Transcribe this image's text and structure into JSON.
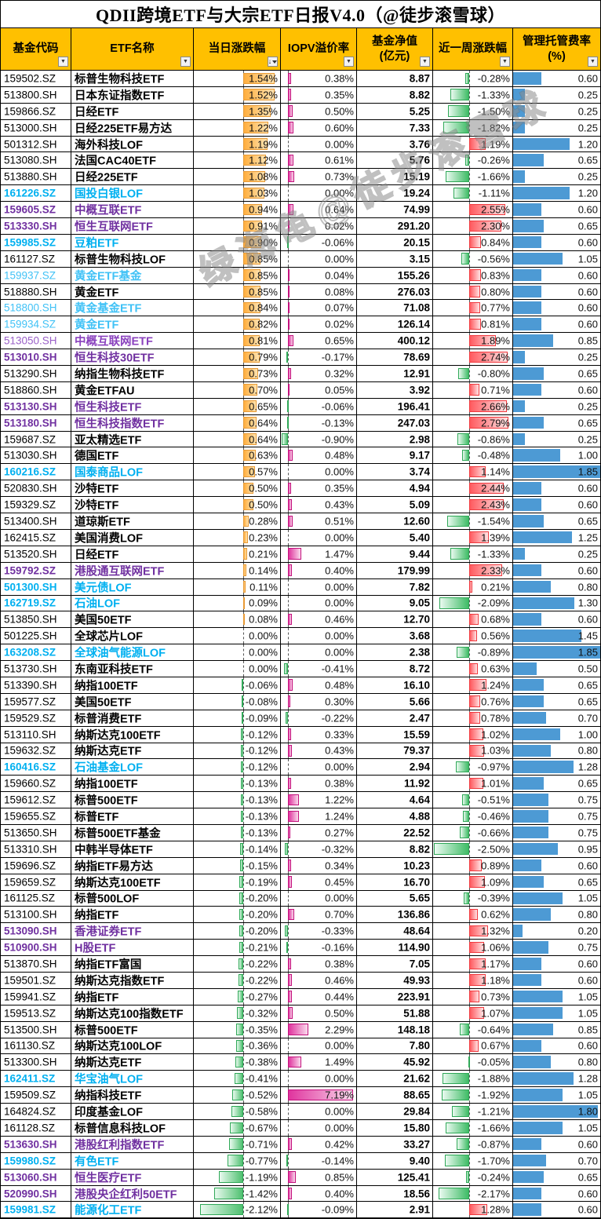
{
  "title": "QDII跨境ETF与大宗ETF日报V4.0（@徒步滚雪球）",
  "watermark": "绿海龟@徒步滚雪球",
  "colors": {
    "header_bg": "#FFC000",
    "daily_bar_pos": "#FFAE3E",
    "iopv_bar_pos": "#E0349E",
    "week_bar_pos": "#FF5A5F",
    "bar_neg": "#4FC070",
    "fee_bar": "#4D9AD4",
    "code_cyan": "#00B0F0",
    "code_lightcyan": "#41C2F6",
    "code_purple": "#7030A0"
  },
  "columns": [
    {
      "label": "基金代码"
    },
    {
      "label": "ETF名称"
    },
    {
      "label": "当日涨跌幅",
      "sorted": true
    },
    {
      "label": "IOPV溢价率"
    },
    {
      "label": "基金净值",
      "label2": "(亿元)"
    },
    {
      "label": "近一周涨跌幅"
    },
    {
      "label": "管理托管费率",
      "label2": "(%)"
    }
  ],
  "rows": [
    {
      "code": "159502.SZ",
      "name": "标普生物科技ETF",
      "style": "black",
      "chg": 1.54,
      "iopv": 0.38,
      "nav": 8.87,
      "week": -0.28,
      "fee": 0.6
    },
    {
      "code": "513800.SH",
      "name": "日本东证指数ETF",
      "style": "black",
      "chg": 1.52,
      "iopv": 0.35,
      "nav": 8.82,
      "week": -1.33,
      "fee": 0.25
    },
    {
      "code": "159866.SZ",
      "name": "日经ETF",
      "style": "black",
      "chg": 1.35,
      "iopv": 0.5,
      "nav": 5.25,
      "week": -1.5,
      "fee": 0.25
    },
    {
      "code": "513000.SH",
      "name": "日经225ETF易方达",
      "style": "black",
      "chg": 1.22,
      "iopv": 0.6,
      "nav": 7.33,
      "week": -1.82,
      "fee": 0.25
    },
    {
      "code": "501312.SH",
      "name": "海外科技LOF",
      "style": "black",
      "chg": 1.19,
      "iopv": 0.0,
      "nav": 3.76,
      "week": 1.19,
      "fee": 1.2
    },
    {
      "code": "513080.SH",
      "name": "法国CAC40ETF",
      "style": "black",
      "chg": 1.12,
      "iopv": 0.61,
      "nav": 5.76,
      "week": -0.26,
      "fee": 0.65
    },
    {
      "code": "513880.SH",
      "name": "日经225ETF",
      "style": "black",
      "chg": 1.08,
      "iopv": 0.73,
      "nav": 15.19,
      "week": -1.66,
      "fee": 0.25
    },
    {
      "code": "161226.SZ",
      "name": "国投白银LOF",
      "style": "cyan",
      "chg": 1.03,
      "iopv": 0.0,
      "nav": 19.24,
      "week": -1.11,
      "fee": 1.2
    },
    {
      "code": "159605.SZ",
      "name": "中概互联ETF",
      "style": "purple",
      "chg": 0.94,
      "iopv": 0.64,
      "nav": 74.99,
      "week": 2.55,
      "fee": 0.6
    },
    {
      "code": "513330.SH",
      "name": "恒生互联网ETF",
      "style": "purple",
      "chg": 0.91,
      "iopv": 0.02,
      "nav": 291.2,
      "week": 2.3,
      "fee": 0.65
    },
    {
      "code": "159985.SZ",
      "name": "豆粕ETF",
      "style": "cyan",
      "chg": 0.9,
      "iopv": -0.06,
      "nav": 20.15,
      "week": 0.84,
      "fee": 0.6
    },
    {
      "code": "161127.SZ",
      "name": "标普生物科技LOF",
      "style": "black",
      "chg": 0.85,
      "iopv": 0.0,
      "nav": 3.15,
      "week": -0.56,
      "fee": 1.05
    },
    {
      "code": "159937.SZ",
      "name": "黄金ETF基金",
      "style": "lightcyan",
      "chg": 0.85,
      "iopv": 0.04,
      "nav": 155.26,
      "week": 0.83,
      "fee": 0.6
    },
    {
      "code": "518880.SH",
      "name": "黄金ETF",
      "style": "black",
      "chg": 0.85,
      "iopv": 0.08,
      "nav": 276.03,
      "week": 0.8,
      "fee": 0.6
    },
    {
      "code": "518800.SH",
      "name": "黄金基金ETF",
      "style": "lightcyan",
      "chg": 0.84,
      "iopv": 0.07,
      "nav": 71.08,
      "week": 0.77,
      "fee": 0.6
    },
    {
      "code": "159934.SZ",
      "name": "黄金ETF",
      "style": "lightcyan",
      "chg": 0.82,
      "iopv": 0.02,
      "nav": 126.14,
      "week": 0.81,
      "fee": 0.6
    },
    {
      "code": "513050.SH",
      "name": "中概互联网ETF",
      "style": "lightpurple",
      "chg": 0.81,
      "iopv": 0.65,
      "nav": 400.12,
      "week": 1.89,
      "fee": 0.85
    },
    {
      "code": "513010.SH",
      "name": "恒生科技30ETF",
      "style": "purple",
      "chg": 0.79,
      "iopv": -0.17,
      "nav": 78.69,
      "week": 2.74,
      "fee": 0.25
    },
    {
      "code": "513290.SH",
      "name": "纳指生物科技ETF",
      "style": "black",
      "chg": 0.73,
      "iopv": 0.32,
      "nav": 12.91,
      "week": -0.8,
      "fee": 0.65
    },
    {
      "code": "518860.SH",
      "name": "黄金ETFAU",
      "style": "black",
      "chg": 0.7,
      "iopv": 0.05,
      "nav": 3.92,
      "week": 0.71,
      "fee": 0.6
    },
    {
      "code": "513130.SH",
      "name": "恒生科技ETF",
      "style": "purple",
      "chg": 0.65,
      "iopv": -0.06,
      "nav": 196.41,
      "week": 2.66,
      "fee": 0.25
    },
    {
      "code": "513180.SH",
      "name": "恒生科技指数ETF",
      "style": "purple",
      "chg": 0.64,
      "iopv": -0.13,
      "nav": 247.03,
      "week": 2.79,
      "fee": 0.65
    },
    {
      "code": "159687.SZ",
      "name": "亚太精选ETF",
      "style": "black",
      "chg": 0.64,
      "iopv": -0.9,
      "nav": 2.98,
      "week": -0.86,
      "fee": 0.25
    },
    {
      "code": "513030.SH",
      "name": "德国ETF",
      "style": "black",
      "chg": 0.63,
      "iopv": 0.48,
      "nav": 9.17,
      "week": -0.48,
      "fee": 1.0
    },
    {
      "code": "160216.SZ",
      "name": "国泰商品LOF",
      "style": "cyan",
      "chg": 0.57,
      "iopv": 0.0,
      "nav": 3.74,
      "week": 1.14,
      "fee": 1.85
    },
    {
      "code": "520830.SH",
      "name": "沙特ETF",
      "style": "black",
      "chg": 0.5,
      "iopv": 0.35,
      "nav": 4.94,
      "week": 2.44,
      "fee": 0.6
    },
    {
      "code": "159329.SZ",
      "name": "沙特ETF",
      "style": "black",
      "chg": 0.5,
      "iopv": 0.43,
      "nav": 5.09,
      "week": 2.43,
      "fee": 0.6
    },
    {
      "code": "513400.SH",
      "name": "道琼斯ETF",
      "style": "black",
      "chg": 0.28,
      "iopv": 0.51,
      "nav": 12.6,
      "week": -1.54,
      "fee": 0.65
    },
    {
      "code": "162415.SZ",
      "name": "美国消费LOF",
      "style": "black",
      "chg": 0.23,
      "iopv": 0.0,
      "nav": 5.4,
      "week": 1.39,
      "fee": 1.25
    },
    {
      "code": "513520.SH",
      "name": "日经ETF",
      "style": "black",
      "chg": 0.21,
      "iopv": 1.47,
      "nav": 9.44,
      "week": -1.33,
      "fee": 0.25
    },
    {
      "code": "159792.SZ",
      "name": "港股通互联网ETF",
      "style": "purple",
      "chg": 0.14,
      "iopv": 0.4,
      "nav": 179.99,
      "week": 2.33,
      "fee": 0.6
    },
    {
      "code": "501300.SH",
      "name": "美元债LOF",
      "style": "cyan",
      "chg": 0.11,
      "iopv": 0.0,
      "nav": 7.82,
      "week": 0.21,
      "fee": 0.8
    },
    {
      "code": "162719.SZ",
      "name": "石油LOF",
      "style": "cyan",
      "chg": 0.09,
      "iopv": 0.0,
      "nav": 9.05,
      "week": -2.09,
      "fee": 1.3
    },
    {
      "code": "513850.SH",
      "name": "美国50ETF",
      "style": "black",
      "chg": 0.08,
      "iopv": 0.46,
      "nav": 12.7,
      "week": 0.68,
      "fee": 0.6
    },
    {
      "code": "501225.SH",
      "name": "全球芯片LOF",
      "style": "black",
      "chg": 0.0,
      "iopv": 0.0,
      "nav": 3.68,
      "week": 0.56,
      "fee": 1.45
    },
    {
      "code": "163208.SZ",
      "name": "全球油气能源LOF",
      "style": "cyan",
      "chg": 0.0,
      "iopv": 0.0,
      "nav": 2.38,
      "week": -0.89,
      "fee": 1.85
    },
    {
      "code": "513730.SH",
      "name": "东南亚科技ETF",
      "style": "black",
      "chg": 0.0,
      "iopv": -0.41,
      "nav": 8.72,
      "week": 0.63,
      "fee": 0.5
    },
    {
      "code": "513390.SH",
      "name": "纳指100ETF",
      "style": "black",
      "chg": -0.06,
      "iopv": 0.48,
      "nav": 16.1,
      "week": 1.24,
      "fee": 0.65
    },
    {
      "code": "159577.SZ",
      "name": "美国50ETF",
      "style": "black",
      "chg": -0.08,
      "iopv": 0.3,
      "nav": 5.66,
      "week": 0.76,
      "fee": 0.65
    },
    {
      "code": "159529.SZ",
      "name": "标普消费ETF",
      "style": "black",
      "chg": -0.09,
      "iopv": -0.22,
      "nav": 2.47,
      "week": 0.78,
      "fee": 0.7
    },
    {
      "code": "513110.SH",
      "name": "纳斯达克100ETF",
      "style": "black",
      "chg": -0.12,
      "iopv": 0.33,
      "nav": 15.59,
      "week": 1.02,
      "fee": 1.0
    },
    {
      "code": "159632.SZ",
      "name": "纳斯达克ETF",
      "style": "black",
      "chg": -0.12,
      "iopv": 0.43,
      "nav": 79.37,
      "week": 1.03,
      "fee": 0.8
    },
    {
      "code": "160416.SZ",
      "name": "石油基金LOF",
      "style": "cyan",
      "chg": -0.12,
      "iopv": 0.0,
      "nav": 2.94,
      "week": -0.97,
      "fee": 1.28
    },
    {
      "code": "159660.SZ",
      "name": "纳指100ETF",
      "style": "black",
      "chg": -0.13,
      "iopv": 0.38,
      "nav": 11.92,
      "week": 1.01,
      "fee": 0.65
    },
    {
      "code": "159612.SZ",
      "name": "标普500ETF",
      "style": "black",
      "chg": -0.13,
      "iopv": 1.22,
      "nav": 4.64,
      "week": -0.51,
      "fee": 0.75
    },
    {
      "code": "159655.SZ",
      "name": "标普ETF",
      "style": "black",
      "chg": -0.13,
      "iopv": 1.24,
      "nav": 4.88,
      "week": -0.46,
      "fee": 0.75
    },
    {
      "code": "513650.SH",
      "name": "标普500ETF基金",
      "style": "black",
      "chg": -0.13,
      "iopv": 0.27,
      "nav": 22.52,
      "week": -0.66,
      "fee": 0.75
    },
    {
      "code": "513310.SH",
      "name": "中韩半导体ETF",
      "style": "black",
      "chg": -0.14,
      "iopv": -0.32,
      "nav": 8.82,
      "week": -2.5,
      "fee": 0.95
    },
    {
      "code": "159696.SZ",
      "name": "纳指ETF易方达",
      "style": "black",
      "chg": -0.15,
      "iopv": 0.34,
      "nav": 10.23,
      "week": 0.89,
      "fee": 0.6
    },
    {
      "code": "159659.SZ",
      "name": "纳斯达克100ETF",
      "style": "black",
      "chg": -0.19,
      "iopv": 0.45,
      "nav": 16.7,
      "week": 1.09,
      "fee": 0.65
    },
    {
      "code": "161125.SZ",
      "name": "标普500LOF",
      "style": "black",
      "chg": -0.2,
      "iopv": 0.0,
      "nav": 5.65,
      "week": -0.39,
      "fee": 1.05
    },
    {
      "code": "513100.SH",
      "name": "纳指ETF",
      "style": "black",
      "chg": -0.2,
      "iopv": 0.7,
      "nav": 136.86,
      "week": 0.62,
      "fee": 0.8
    },
    {
      "code": "513090.SH",
      "name": "香港证券ETF",
      "style": "purple",
      "chg": -0.2,
      "iopv": -0.33,
      "nav": 48.64,
      "week": 1.32,
      "fee": 0.2
    },
    {
      "code": "510900.SH",
      "name": "H股ETF",
      "style": "purple",
      "chg": -0.21,
      "iopv": -0.16,
      "nav": 114.9,
      "week": 1.06,
      "fee": 0.75
    },
    {
      "code": "513870.SH",
      "name": "纳指ETF富国",
      "style": "black",
      "chg": -0.22,
      "iopv": 0.38,
      "nav": 7.05,
      "week": 1.17,
      "fee": 0.6
    },
    {
      "code": "159501.SZ",
      "name": "纳斯达克指数ETF",
      "style": "black",
      "chg": -0.22,
      "iopv": 0.46,
      "nav": 49.93,
      "week": 1.18,
      "fee": 0.6
    },
    {
      "code": "159941.SZ",
      "name": "纳指ETF",
      "style": "black",
      "chg": -0.27,
      "iopv": 0.44,
      "nav": 223.91,
      "week": 0.73,
      "fee": 1.05
    },
    {
      "code": "159513.SZ",
      "name": "纳斯达克100指数ETF",
      "style": "black",
      "chg": -0.32,
      "iopv": 0.5,
      "nav": 51.88,
      "week": 1.07,
      "fee": 1.05
    },
    {
      "code": "513500.SH",
      "name": "标普500ETF",
      "style": "black",
      "chg": -0.35,
      "iopv": 2.29,
      "nav": 148.18,
      "week": -0.64,
      "fee": 0.85
    },
    {
      "code": "161130.SZ",
      "name": "纳斯达克100LOF",
      "style": "black",
      "chg": -0.36,
      "iopv": 0.0,
      "nav": 7.8,
      "week": 0.67,
      "fee": 0.6
    },
    {
      "code": "513300.SH",
      "name": "纳斯达克ETF",
      "style": "black",
      "chg": -0.38,
      "iopv": 1.49,
      "nav": 45.92,
      "week": -0.05,
      "fee": 0.8
    },
    {
      "code": "162411.SZ",
      "name": "华宝油气LOF",
      "style": "cyan",
      "chg": -0.41,
      "iopv": 0.0,
      "nav": 21.62,
      "week": -1.88,
      "fee": 1.28
    },
    {
      "code": "159509.SZ",
      "name": "纳指科技ETF",
      "style": "black",
      "chg": -0.52,
      "iopv": 7.19,
      "nav": 88.65,
      "week": -1.92,
      "fee": 1.05
    },
    {
      "code": "164824.SZ",
      "name": "印度基金LOF",
      "style": "black",
      "chg": -0.58,
      "iopv": 0.0,
      "nav": 29.84,
      "week": -1.21,
      "fee": 1.8
    },
    {
      "code": "161128.SZ",
      "name": "标普信息科技LOF",
      "style": "black",
      "chg": -0.67,
      "iopv": 0.0,
      "nav": 15.8,
      "week": -1.66,
      "fee": 1.05
    },
    {
      "code": "513630.SH",
      "name": "港股红利指数ETF",
      "style": "purple",
      "chg": -0.71,
      "iopv": 0.42,
      "nav": 33.27,
      "week": -0.87,
      "fee": 0.6
    },
    {
      "code": "159980.SZ",
      "name": "有色ETF",
      "style": "cyan",
      "chg": -0.77,
      "iopv": -0.14,
      "nav": 9.4,
      "week": -1.7,
      "fee": 0.7
    },
    {
      "code": "513060.SH",
      "name": "恒生医疗ETF",
      "style": "purple",
      "chg": -1.19,
      "iopv": 0.85,
      "nav": 125.41,
      "week": -0.24,
      "fee": 0.65
    },
    {
      "code": "520990.SH",
      "name": "港股央企红利50ETF",
      "style": "purple",
      "chg": -1.42,
      "iopv": 0.4,
      "nav": 18.56,
      "week": -2.17,
      "fee": 0.6
    },
    {
      "code": "159981.SZ",
      "name": "能源化工ETF",
      "style": "cyan",
      "chg": -2.12,
      "iopv": -0.09,
      "nav": 2.91,
      "week": 1.28,
      "fee": 0.6
    }
  ]
}
